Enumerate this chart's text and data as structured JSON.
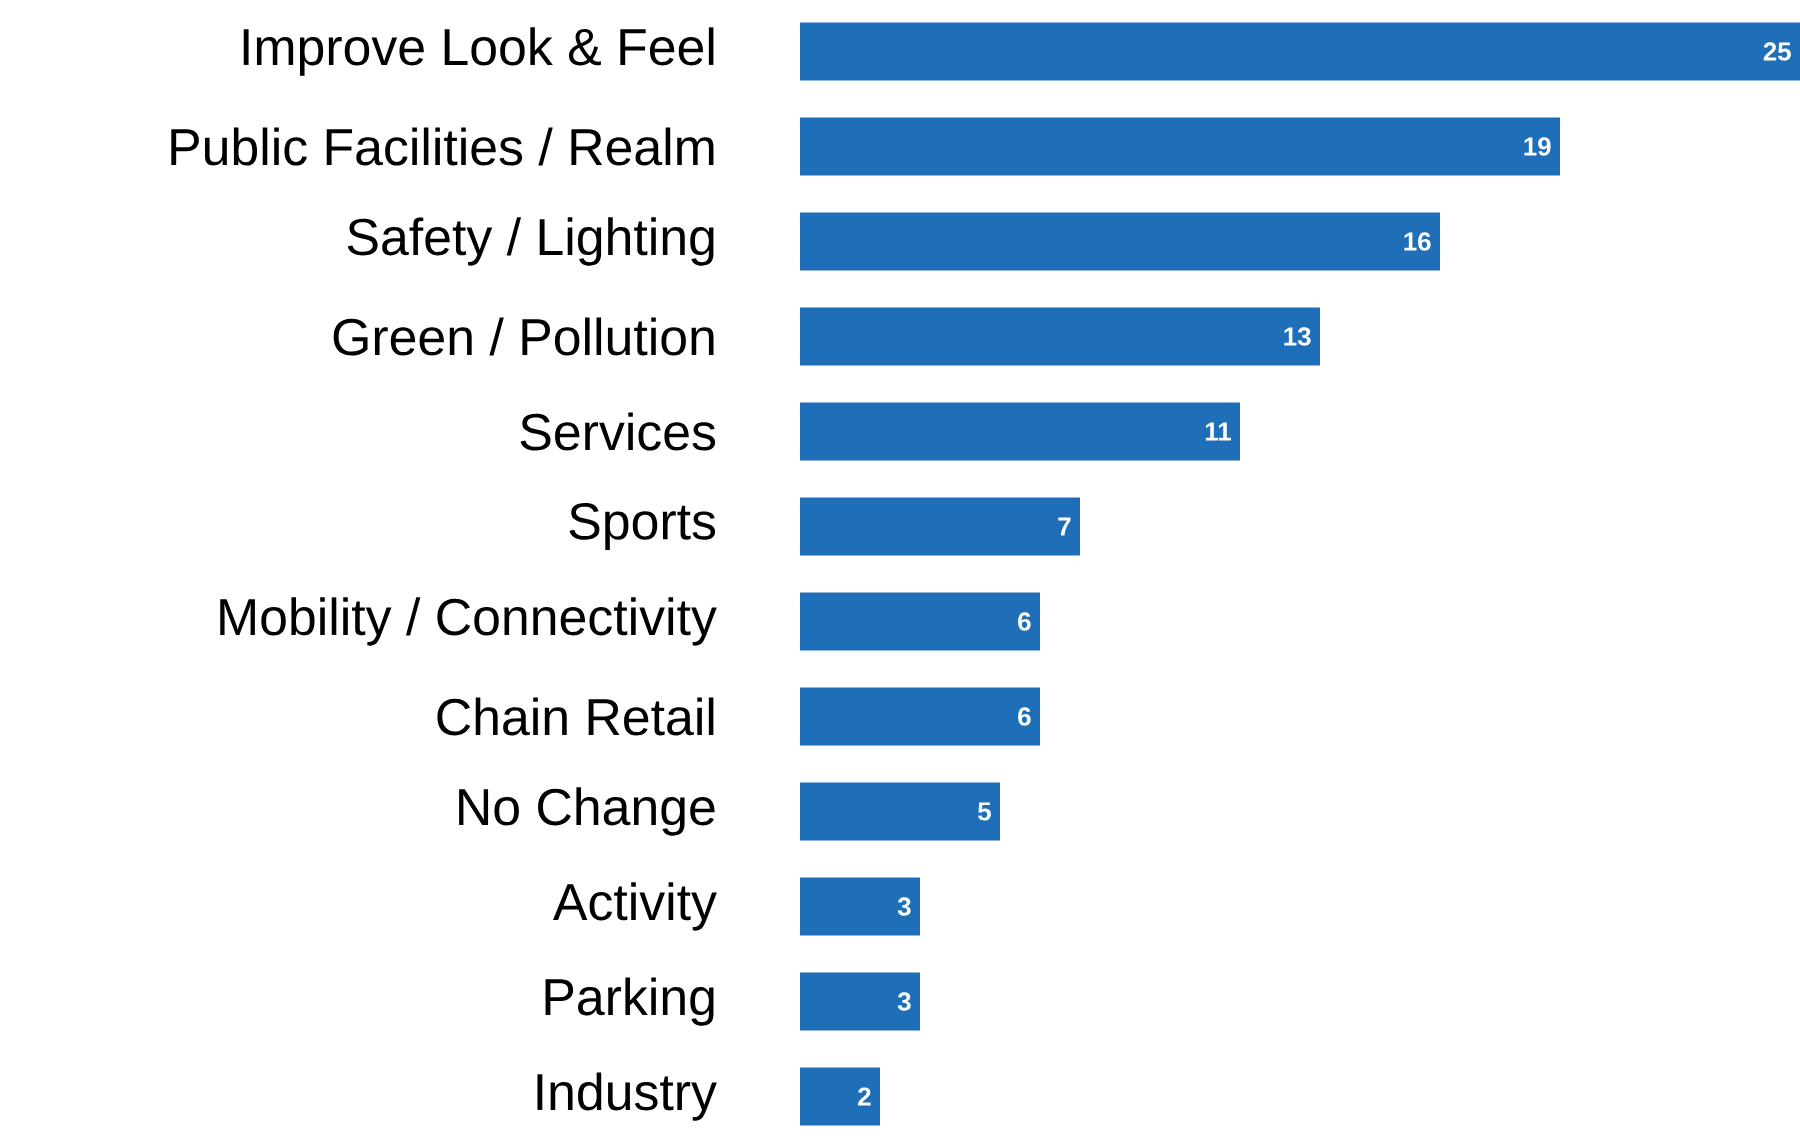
{
  "chart_data": {
    "type": "bar",
    "orientation": "horizontal",
    "categories": [
      "Improve Look & Feel",
      "Public Facilities / Realm",
      "Safety / Lighting",
      "Green / Pollution",
      "Services",
      "Sports",
      "Mobility / Connectivity",
      "Chain Retail",
      "No Change",
      "Activity",
      "Parking",
      "Industry"
    ],
    "values": [
      25,
      19,
      16,
      13,
      11,
      7,
      6,
      6,
      5,
      3,
      3,
      2
    ],
    "color": "#1f6fb8",
    "data_labels": true
  }
}
